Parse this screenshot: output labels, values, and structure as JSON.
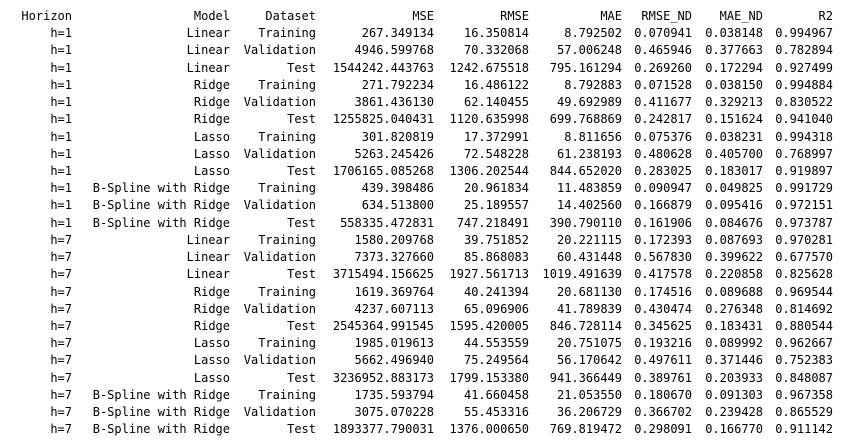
{
  "table": {
    "columns": [
      "Horizon",
      "Model",
      "Dataset",
      "MSE",
      "RMSE",
      "MAE",
      "RMSE_ND",
      "MAE_ND",
      "R2"
    ],
    "rows": [
      [
        "h=1",
        "Linear",
        "Training",
        "267.349134",
        "16.350814",
        "8.792502",
        "0.070941",
        "0.038148",
        "0.994967"
      ],
      [
        "h=1",
        "Linear",
        "Validation",
        "4946.599768",
        "70.332068",
        "57.006248",
        "0.465946",
        "0.377663",
        "0.782894"
      ],
      [
        "h=1",
        "Linear",
        "Test",
        "1544242.443763",
        "1242.675518",
        "795.161294",
        "0.269260",
        "0.172294",
        "0.927499"
      ],
      [
        "h=1",
        "Ridge",
        "Training",
        "271.792234",
        "16.486122",
        "8.792883",
        "0.071528",
        "0.038150",
        "0.994884"
      ],
      [
        "h=1",
        "Ridge",
        "Validation",
        "3861.436130",
        "62.140455",
        "49.692989",
        "0.411677",
        "0.329213",
        "0.830522"
      ],
      [
        "h=1",
        "Ridge",
        "Test",
        "1255825.040431",
        "1120.635998",
        "699.768869",
        "0.242817",
        "0.151624",
        "0.941040"
      ],
      [
        "h=1",
        "Lasso",
        "Training",
        "301.820819",
        "17.372991",
        "8.811656",
        "0.075376",
        "0.038231",
        "0.994318"
      ],
      [
        "h=1",
        "Lasso",
        "Validation",
        "5263.245426",
        "72.548228",
        "61.238193",
        "0.480628",
        "0.405700",
        "0.768997"
      ],
      [
        "h=1",
        "Lasso",
        "Test",
        "1706165.085268",
        "1306.202544",
        "844.652020",
        "0.283025",
        "0.183017",
        "0.919897"
      ],
      [
        "h=1",
        "B-Spline with Ridge",
        "Training",
        "439.398486",
        "20.961834",
        "11.483859",
        "0.090947",
        "0.049825",
        "0.991729"
      ],
      [
        "h=1",
        "B-Spline with Ridge",
        "Validation",
        "634.513800",
        "25.189557",
        "14.402560",
        "0.166879",
        "0.095416",
        "0.972151"
      ],
      [
        "h=1",
        "B-Spline with Ridge",
        "Test",
        "558335.472831",
        "747.218491",
        "390.790110",
        "0.161906",
        "0.084676",
        "0.973787"
      ],
      [
        "h=7",
        "Linear",
        "Training",
        "1580.209768",
        "39.751852",
        "20.221115",
        "0.172393",
        "0.087693",
        "0.970281"
      ],
      [
        "h=7",
        "Linear",
        "Validation",
        "7373.327660",
        "85.868083",
        "60.431448",
        "0.567830",
        "0.399622",
        "0.677570"
      ],
      [
        "h=7",
        "Linear",
        "Test",
        "3715494.156625",
        "1927.561713",
        "1019.491639",
        "0.417578",
        "0.220858",
        "0.825628"
      ],
      [
        "h=7",
        "Ridge",
        "Training",
        "1619.369764",
        "40.241394",
        "20.681130",
        "0.174516",
        "0.089688",
        "0.969544"
      ],
      [
        "h=7",
        "Ridge",
        "Validation",
        "4237.607113",
        "65.096906",
        "41.789839",
        "0.430474",
        "0.276348",
        "0.814692"
      ],
      [
        "h=7",
        "Ridge",
        "Test",
        "2545364.991545",
        "1595.420005",
        "846.728114",
        "0.345625",
        "0.183431",
        "0.880544"
      ],
      [
        "h=7",
        "Lasso",
        "Training",
        "1985.019613",
        "44.553559",
        "20.751075",
        "0.193216",
        "0.089992",
        "0.962667"
      ],
      [
        "h=7",
        "Lasso",
        "Validation",
        "5662.496940",
        "75.249564",
        "56.170642",
        "0.497611",
        "0.371446",
        "0.752383"
      ],
      [
        "h=7",
        "Lasso",
        "Test",
        "3236952.883173",
        "1799.153380",
        "941.366449",
        "0.389761",
        "0.203933",
        "0.848087"
      ],
      [
        "h=7",
        "B-Spline with Ridge",
        "Training",
        "1735.593794",
        "41.660458",
        "21.053550",
        "0.180670",
        "0.091303",
        "0.967358"
      ],
      [
        "h=7",
        "B-Spline with Ridge",
        "Validation",
        "3075.070228",
        "55.453316",
        "36.206729",
        "0.366702",
        "0.239428",
        "0.865529"
      ],
      [
        "h=7",
        "B-Spline with Ridge",
        "Test",
        "1893377.790031",
        "1376.000650",
        "769.819472",
        "0.298091",
        "0.166770",
        "0.911142"
      ]
    ]
  }
}
